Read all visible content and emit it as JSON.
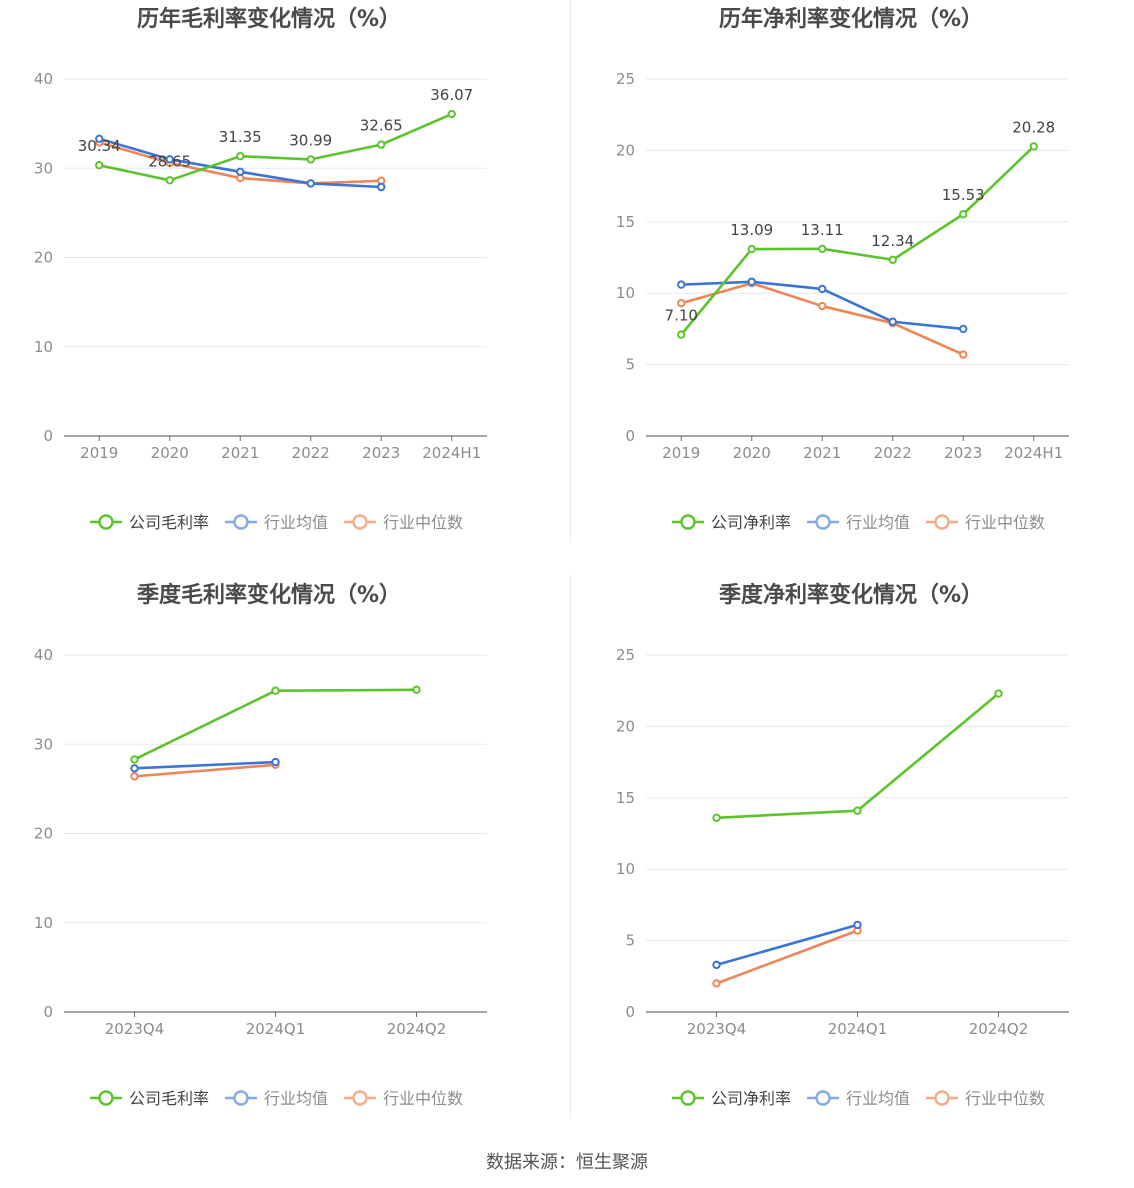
{
  "source_text": "数据来源：恒生聚源",
  "colors": {
    "company": "#5bc42b",
    "avg": "#3b74d8",
    "median": "#ef8554",
    "grid": "#e6e8ef",
    "axis": "#6e6e6e",
    "label": "#8c8c8c"
  },
  "chart_data": [
    {
      "type": "line",
      "title": "历年毛利率变化情况（%）",
      "categories": [
        "2019",
        "2020",
        "2021",
        "2022",
        "2023",
        "2024H1"
      ],
      "ylim": [
        0,
        40
      ],
      "yticks": [
        0,
        10,
        20,
        30,
        40
      ],
      "grid": true,
      "legend_position": "bottom",
      "series": [
        {
          "name": "公司毛利率",
          "color": "#5bc42b",
          "values": [
            30.34,
            28.65,
            31.35,
            30.99,
            32.65,
            36.07
          ],
          "labels": [
            "30.34",
            "28.65",
            "31.35",
            "30.99",
            "32.65",
            "36.07"
          ]
        },
        {
          "name": "行业均值",
          "color": "#3b74d8",
          "values": [
            33.3,
            31.0,
            29.6,
            28.3,
            27.9,
            null
          ]
        },
        {
          "name": "行业中位数",
          "color": "#ef8554",
          "values": [
            32.9,
            30.6,
            28.9,
            28.3,
            28.6,
            null
          ]
        }
      ]
    },
    {
      "type": "line",
      "title": "历年净利率变化情况（%）",
      "categories": [
        "2019",
        "2020",
        "2021",
        "2022",
        "2023",
        "2024H1"
      ],
      "ylim": [
        0,
        25
      ],
      "yticks": [
        0,
        5,
        10,
        15,
        20,
        25
      ],
      "grid": true,
      "legend_position": "bottom",
      "series": [
        {
          "name": "公司净利率",
          "color": "#5bc42b",
          "values": [
            7.1,
            13.09,
            13.11,
            12.34,
            15.53,
            20.28
          ],
          "labels": [
            "7.10",
            "13.09",
            "13.11",
            "12.34",
            "15.53",
            "20.28"
          ]
        },
        {
          "name": "行业均值",
          "color": "#3b74d8",
          "values": [
            10.6,
            10.8,
            10.3,
            8.0,
            7.5,
            null
          ]
        },
        {
          "name": "行业中位数",
          "color": "#ef8554",
          "values": [
            9.3,
            10.7,
            9.1,
            7.9,
            5.7,
            null
          ]
        }
      ]
    },
    {
      "type": "line",
      "title": "季度毛利率变化情况（%）",
      "categories": [
        "2023Q4",
        "2024Q1",
        "2024Q2"
      ],
      "ylim": [
        0,
        40
      ],
      "yticks": [
        0,
        10,
        20,
        30,
        40
      ],
      "grid": true,
      "legend_position": "bottom",
      "series": [
        {
          "name": "公司毛利率",
          "color": "#5bc42b",
          "values": [
            28.3,
            36.0,
            36.1
          ]
        },
        {
          "name": "行业均值",
          "color": "#3b74d8",
          "values": [
            27.3,
            28.0,
            null
          ]
        },
        {
          "name": "行业中位数",
          "color": "#ef8554",
          "values": [
            26.4,
            27.7,
            null
          ]
        }
      ]
    },
    {
      "type": "line",
      "title": "季度净利率变化情况（%）",
      "categories": [
        "2023Q4",
        "2024Q1",
        "2024Q2"
      ],
      "ylim": [
        0,
        25
      ],
      "yticks": [
        0,
        5,
        10,
        15,
        20,
        25
      ],
      "grid": true,
      "legend_position": "bottom",
      "series": [
        {
          "name": "公司净利率",
          "color": "#5bc42b",
          "values": [
            13.6,
            14.1,
            22.3
          ]
        },
        {
          "name": "行业均值",
          "color": "#3b74d8",
          "values": [
            3.3,
            6.1,
            null
          ]
        },
        {
          "name": "行业中位数",
          "color": "#ef8554",
          "values": [
            2.0,
            5.7,
            null
          ]
        }
      ]
    }
  ]
}
